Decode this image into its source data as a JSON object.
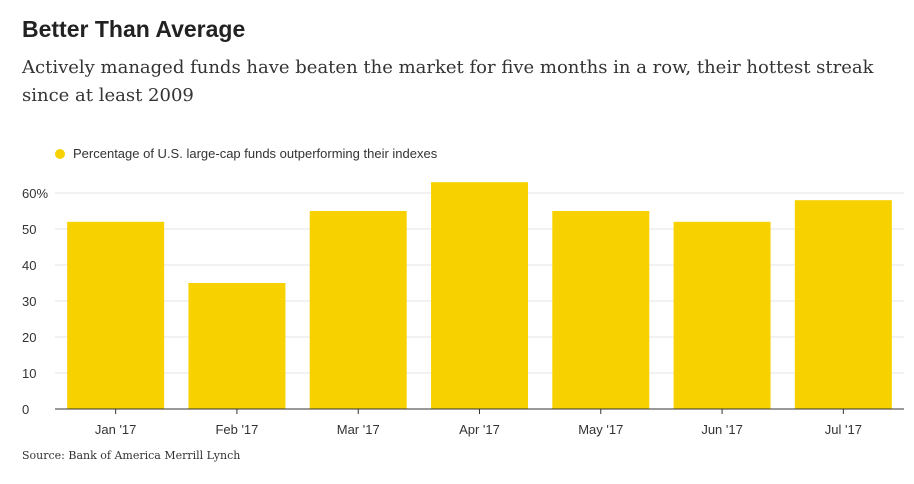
{
  "title": "Better Than Average",
  "subtitle": "Actively managed funds have beaten the market for five months in a row, their hottest streak since at least 2009",
  "source": "Source: Bank of America Merrill Lynch",
  "colors": {
    "bar": "#F7D200",
    "grid": "#e6e6e6",
    "axis": "#333333"
  },
  "chart_data": {
    "type": "bar",
    "categories": [
      "Jan '17",
      "Feb '17",
      "Mar '17",
      "Apr '17",
      "May '17",
      "Jun '17",
      "Jul '17"
    ],
    "series": [
      {
        "name": "Percentage of U.S. large-cap funds outperforming their indexes",
        "values": [
          52,
          35,
          55,
          63,
          55,
          52,
          58
        ]
      }
    ],
    "ylim": [
      0,
      65
    ],
    "yticks": [
      0,
      10,
      20,
      30,
      40,
      50,
      60
    ],
    "ytick_labels": [
      "0",
      "10",
      "20",
      "30",
      "40",
      "50",
      "60%"
    ],
    "grid": true,
    "legend_position": "top-left",
    "xlabel": "",
    "ylabel": ""
  }
}
